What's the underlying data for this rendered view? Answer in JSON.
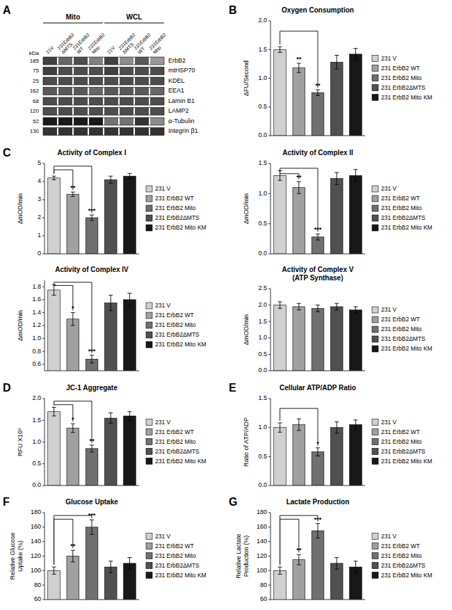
{
  "chart_data": [
    {
      "type": "western_blot",
      "panel": "A",
      "rows": [
        "ErbB2",
        "mtHSP70",
        "KDEL",
        "EEA1",
        "Lamin B1",
        "LAMP2",
        "α-Tubulin",
        "Integrin β1"
      ],
      "kda": [
        185,
        75,
        25,
        162,
        68,
        120,
        52,
        130
      ],
      "kda_label": "kDa",
      "column_groups": [
        {
          "name": "Mito",
          "columns": [
            "21V",
            "231ErbB2\nΔMTS",
            "231ErbB2\nWT",
            "231ErbB2\nMito"
          ]
        },
        {
          "name": "WCL",
          "columns": [
            "21V",
            "231ErbB2\nΔMTS",
            "231ErbB2\nWT",
            "231ErbB2\nMito"
          ]
        }
      ],
      "cells": [
        [
          0.25,
          0.4,
          0.3,
          0.5,
          0.25,
          0.55,
          0.35,
          0.6
        ],
        [
          0.25,
          0.3,
          0.3,
          0.3,
          0.25,
          0.3,
          0.3,
          0.3
        ],
        [
          0.3,
          0.3,
          0.3,
          0.3,
          0.3,
          0.3,
          0.3,
          0.3
        ],
        [
          0.35,
          0.35,
          0.35,
          0.4,
          0.35,
          0.35,
          0.35,
          0.4
        ],
        [
          0.3,
          0.3,
          0.3,
          0.3,
          0.3,
          0.3,
          0.3,
          0.3
        ],
        [
          0.3,
          0.3,
          0.3,
          0.3,
          0.3,
          0.3,
          0.3,
          0.3
        ],
        [
          0.1,
          0.1,
          0.1,
          0.1,
          0.45,
          0.45,
          0.2,
          0.55
        ],
        [
          0.2,
          0.2,
          0.2,
          0.2,
          0.2,
          0.2,
          0.2,
          0.2
        ]
      ]
    },
    {
      "type": "bar",
      "panel": "B",
      "title": "Oxygen Consumption",
      "y_label": "ΔFU/Second",
      "categories": [
        null
      ],
      "tick_labels": "y",
      "legend": "right",
      "series": [
        {
          "name": "231 V",
          "color": "#d0d0d0",
          "values": [
            1.5
          ],
          "errors": [
            0.05
          ]
        },
        {
          "name": "231 ErbB2 WT",
          "color": "#a0a0a0",
          "values": [
            1.18
          ],
          "errors": [
            0.08
          ]
        },
        {
          "name": "231 ErbB2 Mito",
          "color": "#707070",
          "values": [
            0.75
          ],
          "errors": [
            0.05
          ]
        },
        {
          "name": "231 ErbB2ΔMTS",
          "color": "#505050",
          "values": [
            1.28
          ],
          "errors": [
            0.12
          ]
        },
        {
          "name": "231 ErbB2 Mito KM",
          "color": "#181818",
          "values": [
            1.42
          ],
          "errors": [
            0.1
          ]
        }
      ],
      "ylim": [
        0.0,
        2.0
      ],
      "yticks": [
        {
          "value": 0.0,
          "label": "0.0"
        },
        0.5,
        {
          "value": 1.0,
          "label": "1.0"
        },
        1.5,
        {
          "value": 2.0,
          "label": "2.0"
        }
      ],
      "brackets": [
        {
          "from": "231 V",
          "to": "231 ErbB2 Mito",
          "y": 1.82
        }
      ],
      "annotations": [
        {
          "series": "231 ErbB2 WT",
          "text": "**"
        },
        {
          "series": "231 ErbB2 Mito",
          "text": "**"
        }
      ]
    },
    {
      "type": "bar",
      "panel": "C",
      "title": "Activity of Complex I",
      "y_label": "ΔmOD/min",
      "categories": [
        null
      ],
      "tick_labels": "y",
      "legend": "right",
      "series": [
        {
          "name": "231 V",
          "color": "#d0d0d0",
          "values": [
            4.2
          ],
          "errors": [
            0.1
          ]
        },
        {
          "name": "231 ErbB2 WT",
          "color": "#a0a0a0",
          "values": [
            3.3
          ],
          "errors": [
            0.12
          ]
        },
        {
          "name": "231 ErbB2 Mito",
          "color": "#707070",
          "values": [
            2.0
          ],
          "errors": [
            0.15
          ]
        },
        {
          "name": "231 ErbB2ΔMTS",
          "color": "#505050",
          "values": [
            4.1
          ],
          "errors": [
            0.2
          ]
        },
        {
          "name": "231 ErbB2 Mito KM",
          "color": "#181818",
          "values": [
            4.3
          ],
          "errors": [
            0.15
          ]
        }
      ],
      "ylim": [
        0,
        5
      ],
      "yticks": [
        0,
        1,
        2,
        3,
        4,
        5
      ],
      "brackets": [
        {
          "from": "231 V",
          "to": "231 ErbB2 WT",
          "y": 4.65
        },
        {
          "from": "231 V",
          "to": "231 ErbB2 Mito",
          "y": 4.85
        }
      ],
      "annotations": [
        {
          "series": "231 ErbB2 WT",
          "text": "**"
        },
        {
          "series": "231 ErbB2 Mito",
          "text": "***"
        }
      ]
    },
    {
      "type": "bar",
      "title": "Activity of Complex II",
      "y_label": "ΔmOD/min",
      "categories": [
        null
      ],
      "tick_labels": "y",
      "legend": "right",
      "series": [
        {
          "name": "231 V",
          "color": "#d0d0d0",
          "values": [
            1.3
          ],
          "errors": [
            0.08
          ]
        },
        {
          "name": "231 ErbB2 WT",
          "color": "#a0a0a0",
          "values": [
            1.1
          ],
          "errors": [
            0.1
          ]
        },
        {
          "name": "231 ErbB2 Mito",
          "color": "#707070",
          "values": [
            0.28
          ],
          "errors": [
            0.05
          ]
        },
        {
          "name": "231 ErbB2ΔMTS",
          "color": "#505050",
          "values": [
            1.25
          ],
          "errors": [
            0.1
          ]
        },
        {
          "name": "231 ErbB2 Mito KM",
          "color": "#181818",
          "values": [
            1.3
          ],
          "errors": [
            0.1
          ]
        }
      ],
      "ylim": [
        0.0,
        1.5
      ],
      "yticks": [
        {
          "value": 0.0,
          "label": "0.0"
        },
        0.5,
        {
          "value": 1.0,
          "label": "1.0"
        },
        1.5
      ],
      "brackets": [
        {
          "from": "231 V",
          "to": "231 ErbB2 WT",
          "y": 1.33
        },
        {
          "from": "231 V",
          "to": "231 ErbB2 Mito",
          "y": 1.42
        }
      ],
      "annotations": [
        {
          "series": "231 ErbB2 WT",
          "text": "**"
        },
        {
          "series": "231 ErbB2 Mito",
          "text": "***"
        }
      ]
    },
    {
      "type": "bar",
      "title": "Activity of Complex IV",
      "y_label": "ΔmOD/min",
      "categories": [
        null
      ],
      "tick_labels": "y",
      "legend": "right",
      "series": [
        {
          "name": "231 V",
          "color": "#d0d0d0",
          "values": [
            1.75
          ],
          "errors": [
            0.08
          ]
        },
        {
          "name": "231 ErbB2 WT",
          "color": "#a0a0a0",
          "values": [
            1.3
          ],
          "errors": [
            0.1
          ]
        },
        {
          "name": "231 ErbB2 Mito",
          "color": "#707070",
          "values": [
            0.68
          ],
          "errors": [
            0.06
          ]
        },
        {
          "name": "231 ErbB2ΔMTS",
          "color": "#505050",
          "values": [
            1.55
          ],
          "errors": [
            0.12
          ]
        },
        {
          "name": "231 ErbB2 Mito KM",
          "color": "#181818",
          "values": [
            1.6
          ],
          "errors": [
            0.1
          ]
        }
      ],
      "ylim": [
        0.5,
        1.9
      ],
      "yticks": [
        0.6,
        0.8,
        {
          "value": 1.0,
          "label": "1.0"
        },
        1.2,
        1.4,
        1.6,
        1.8
      ],
      "brackets": [
        {
          "from": "231 V",
          "to": "231 ErbB2 WT",
          "y": 1.82
        },
        {
          "from": "231 V",
          "to": "231 ErbB2 Mito",
          "y": 1.87
        }
      ],
      "annotations": [
        {
          "series": "231 ErbB2 WT",
          "text": "*"
        },
        {
          "series": "231 ErbB2 Mito",
          "text": "***"
        }
      ]
    },
    {
      "type": "bar",
      "title": "Activity of Complex V\n(ATP Synthase)",
      "y_label": "ΔmOD/min",
      "categories": [
        null
      ],
      "tick_labels": "y",
      "legend": "right",
      "series": [
        {
          "name": "231 V",
          "color": "#d0d0d0",
          "values": [
            2.0
          ],
          "errors": [
            0.1
          ]
        },
        {
          "name": "231 ErbB2 WT",
          "color": "#a0a0a0",
          "values": [
            1.95
          ],
          "errors": [
            0.1
          ]
        },
        {
          "name": "231 ErbB2 Mito",
          "color": "#707070",
          "values": [
            1.9
          ],
          "errors": [
            0.1
          ]
        },
        {
          "name": "231 ErbB2ΔMTS",
          "color": "#505050",
          "values": [
            1.95
          ],
          "errors": [
            0.1
          ]
        },
        {
          "name": "231 ErbB2 Mito KM",
          "color": "#181818",
          "values": [
            1.85
          ],
          "errors": [
            0.1
          ]
        }
      ],
      "ylim": [
        0.0,
        2.5
      ],
      "yticks": [
        {
          "value": 0.0,
          "label": "0.0"
        },
        0.5,
        {
          "value": 1.0,
          "label": "1.0"
        },
        1.5,
        {
          "value": 2.0,
          "label": "2.0"
        },
        2.5
      ]
    },
    {
      "type": "bar",
      "panel": "D",
      "title": "JC-1 Aggregate",
      "y_label": "RFU X10⁵",
      "categories": [
        null
      ],
      "tick_labels": "y",
      "legend": "right",
      "series": [
        {
          "name": "231 V",
          "color": "#d0d0d0",
          "values": [
            1.7
          ],
          "errors": [
            0.1
          ]
        },
        {
          "name": "231 ErbB2 WT",
          "color": "#a0a0a0",
          "values": [
            1.32
          ],
          "errors": [
            0.1
          ]
        },
        {
          "name": "231 ErbB2 Mito",
          "color": "#707070",
          "values": [
            0.85
          ],
          "errors": [
            0.08
          ]
        },
        {
          "name": "231 ErbB2ΔMTS",
          "color": "#505050",
          "values": [
            1.55
          ],
          "errors": [
            0.12
          ]
        },
        {
          "name": "231 ErbB2 Mito KM",
          "color": "#181818",
          "values": [
            1.6
          ],
          "errors": [
            0.1
          ]
        }
      ],
      "ylim": [
        0.0,
        2.0
      ],
      "yticks": [
        {
          "value": 0.0,
          "label": "0.0"
        },
        0.5,
        {
          "value": 1.0,
          "label": "1.0"
        },
        1.5,
        {
          "value": 2.0,
          "label": "2.0"
        }
      ],
      "brackets": [
        {
          "from": "231 V",
          "to": "231 ErbB2 WT",
          "y": 1.86
        },
        {
          "from": "231 V",
          "to": "231 ErbB2 Mito",
          "y": 1.94
        }
      ],
      "annotations": [
        {
          "series": "231 ErbB2 WT",
          "text": "*"
        },
        {
          "series": "231 ErbB2 Mito",
          "text": "**"
        }
      ]
    },
    {
      "type": "bar",
      "panel": "E",
      "title": "Cellular ATP/ADP Ratio",
      "y_label": "Ratio of ATP/ADP",
      "categories": [
        null
      ],
      "tick_labels": "y",
      "legend": "right",
      "series": [
        {
          "name": "231 V",
          "color": "#d0d0d0",
          "values": [
            1.0
          ],
          "errors": [
            0.08
          ]
        },
        {
          "name": "231 ErbB2 WT",
          "color": "#a0a0a0",
          "values": [
            1.05
          ],
          "errors": [
            0.1
          ]
        },
        {
          "name": "231 ErbB2 Mito",
          "color": "#707070",
          "values": [
            0.58
          ],
          "errors": [
            0.07
          ]
        },
        {
          "name": "231 ErbB2ΔMTS",
          "color": "#505050",
          "values": [
            1.0
          ],
          "errors": [
            0.1
          ]
        },
        {
          "name": "231 ErbB2 Mito KM",
          "color": "#181818",
          "values": [
            1.05
          ],
          "errors": [
            0.08
          ]
        }
      ],
      "ylim": [
        0.0,
        1.5
      ],
      "yticks": [
        {
          "value": 0.0,
          "label": "0.0"
        },
        0.5,
        {
          "value": 1.0,
          "label": "1.0"
        },
        1.5
      ],
      "brackets": [
        {
          "from": "231 V",
          "to": "231 ErbB2 Mito",
          "y": 1.33
        }
      ],
      "annotations": [
        {
          "series": "231 ErbB2 Mito",
          "text": "*"
        }
      ]
    },
    {
      "type": "bar",
      "panel": "F",
      "title": "Glucose Uptake",
      "y_label": "Relative Glucose\nUptake (%)",
      "categories": [
        null
      ],
      "tick_labels": "y",
      "legend": "right",
      "series": [
        {
          "name": "231 V",
          "color": "#d0d0d0",
          "values": [
            100
          ],
          "errors": [
            5
          ]
        },
        {
          "name": "231 ErbB2 WT",
          "color": "#a0a0a0",
          "values": [
            120
          ],
          "errors": [
            8
          ]
        },
        {
          "name": "231 ErbB2 Mito",
          "color": "#707070",
          "values": [
            160
          ],
          "errors": [
            10
          ]
        },
        {
          "name": "231 ErbB2ΔMTS",
          "color": "#505050",
          "values": [
            105
          ],
          "errors": [
            8
          ]
        },
        {
          "name": "231 ErbB2 Mito KM",
          "color": "#181818",
          "values": [
            110
          ],
          "errors": [
            8
          ]
        }
      ],
      "ylim": [
        60,
        180
      ],
      "yticks": [
        60,
        80,
        100,
        120,
        140,
        160,
        180
      ],
      "brackets": [
        {
          "from": "231 V",
          "to": "231 ErbB2 WT",
          "y": 171
        },
        {
          "from": "231 V",
          "to": "231 ErbB2 Mito",
          "y": 176
        }
      ],
      "annotations": [
        {
          "series": "231 ErbB2 WT",
          "text": "**"
        },
        {
          "series": "231 ErbB2 Mito",
          "text": "***"
        }
      ]
    },
    {
      "type": "bar",
      "panel": "G",
      "title": "Lactate Production",
      "y_label": "Relative Lactate\nProduction (%)",
      "categories": [
        null
      ],
      "tick_labels": "y",
      "legend": "right",
      "series": [
        {
          "name": "231 V",
          "color": "#d0d0d0",
          "values": [
            100
          ],
          "errors": [
            5
          ]
        },
        {
          "name": "231 ErbB2 WT",
          "color": "#a0a0a0",
          "values": [
            115
          ],
          "errors": [
            7
          ]
        },
        {
          "name": "231 ErbB2 Mito",
          "color": "#707070",
          "values": [
            155
          ],
          "errors": [
            10
          ]
        },
        {
          "name": "231 ErbB2ΔMTS",
          "color": "#505050",
          "values": [
            110
          ],
          "errors": [
            8
          ]
        },
        {
          "name": "231 ErbB2 Mito KM",
          "color": "#181818",
          "values": [
            105
          ],
          "errors": [
            8
          ]
        }
      ],
      "ylim": [
        60,
        180
      ],
      "yticks": [
        60,
        80,
        100,
        120,
        140,
        160,
        180
      ],
      "brackets": [
        {
          "from": "231 V",
          "to": "231 ErbB2 WT",
          "y": 171
        },
        {
          "from": "231 V",
          "to": "231 ErbB2 Mito",
          "y": 176
        }
      ],
      "annotations": [
        {
          "series": "231 ErbB2 WT",
          "text": "**"
        },
        {
          "series": "231 ErbB2 Mito",
          "text": "***"
        }
      ]
    }
  ]
}
